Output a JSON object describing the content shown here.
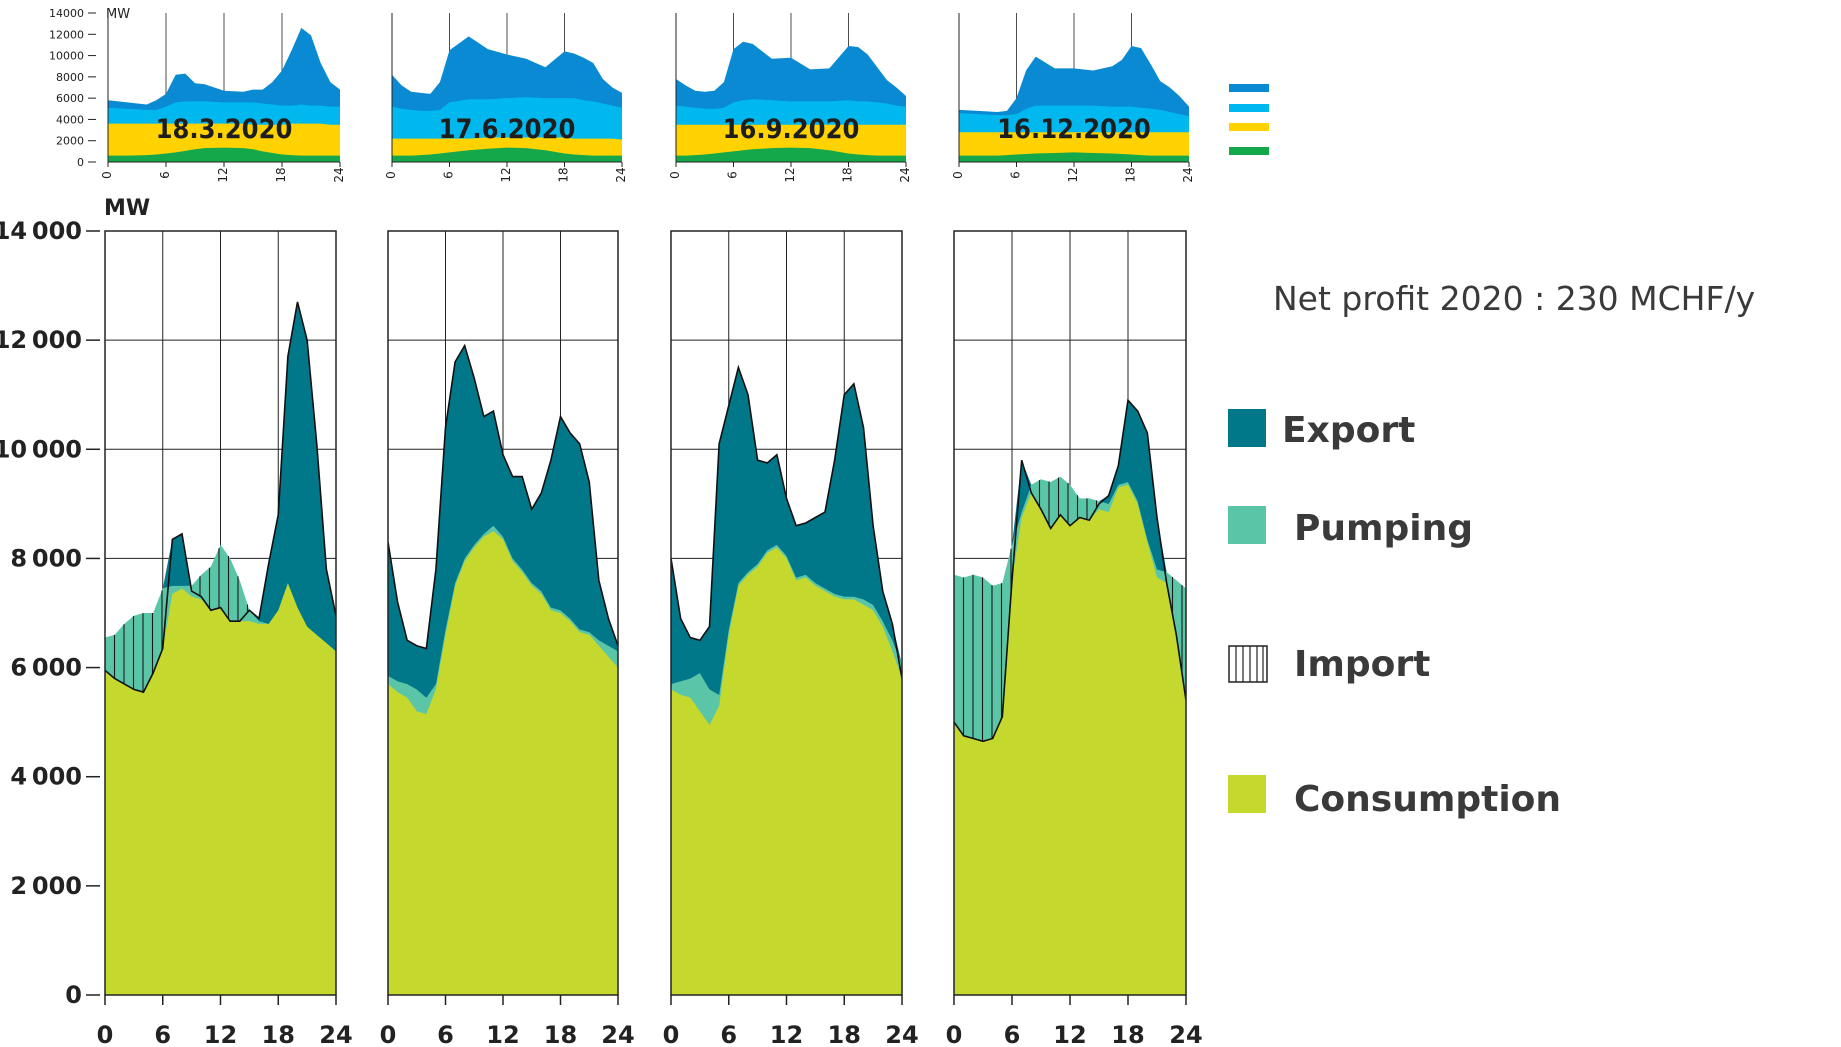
{
  "profit_text": "Net profit 2020 : 230 MCHF/y",
  "legend": {
    "export": "Export",
    "pumping": "Pumping",
    "import": "Import",
    "consumption": "Consumption"
  },
  "colors": {
    "export": "#01778A",
    "pumping": "#5BC5A8",
    "consumption": "#C5D82E",
    "hatch": "#1a1a1a",
    "top_blue_dark": "#0A8AD2",
    "top_blue_light": "#00B8EE",
    "top_yellow": "#FFD200",
    "top_green": "#15A84A"
  },
  "chart_data": [
    {
      "type": "area",
      "title": "",
      "ylabel": "MW",
      "xlabel": "",
      "ylim": [
        0,
        14000
      ],
      "xlim": [
        0,
        24
      ],
      "x_ticks": [
        0,
        6,
        12,
        18,
        24
      ],
      "y_ticks": [
        0,
        2000,
        4000,
        6000,
        8000,
        10000,
        12000,
        14000
      ],
      "grid": true,
      "legend_position": "right",
      "panels": [
        {
          "hours": [
            0,
            1,
            2,
            3,
            4,
            5,
            6,
            7,
            8,
            9,
            10,
            11,
            12,
            13,
            14,
            15,
            16,
            17,
            18,
            19,
            20,
            21,
            22,
            23,
            24
          ],
          "consumption": [
            6500,
            6550,
            6700,
            6850,
            6950,
            6950,
            7200,
            7350,
            7450,
            7300,
            7250,
            7350,
            7450,
            7250,
            7000,
            6850,
            6800,
            6800,
            7050,
            7550,
            7100,
            6750,
            6600,
            6450,
            6300
          ],
          "production": [
            5950,
            5800,
            5700,
            5600,
            5550,
            5900,
            6350,
            8350,
            8450,
            7400,
            7300,
            7050,
            7100,
            6850,
            6850,
            7050,
            6900,
            7900,
            8800,
            11700,
            12700,
            12000,
            10100,
            7800,
            6950
          ],
          "pumping": [
            6550,
            6600,
            6800,
            6950,
            7000,
            7000,
            7450,
            7500,
            7500,
            7500,
            7700,
            7850,
            8250,
            8000,
            7600,
            7050,
            6850,
            6800,
            7050,
            7550,
            7100,
            6750,
            6600,
            6450,
            6300
          ]
        },
        {
          "hours": [
            0,
            1,
            2,
            3,
            4,
            5,
            6,
            7,
            8,
            9,
            10,
            11,
            12,
            13,
            14,
            15,
            16,
            17,
            18,
            19,
            20,
            21,
            22,
            23,
            24
          ],
          "consumption": [
            5700,
            5550,
            5450,
            5200,
            5150,
            5600,
            6600,
            7500,
            7950,
            8200,
            8400,
            8500,
            8350,
            7950,
            7750,
            7500,
            7350,
            7050,
            7000,
            6850,
            6650,
            6600,
            6400,
            6200,
            6000
          ],
          "production": [
            8300,
            7200,
            6500,
            6400,
            6350,
            7800,
            10400,
            11600,
            11900,
            11300,
            10600,
            10700,
            9900,
            9500,
            9500,
            8900,
            9200,
            9800,
            10600,
            10300,
            10100,
            9400,
            7600,
            6900,
            6400
          ],
          "pumping": [
            5850,
            5750,
            5700,
            5600,
            5450,
            5700,
            6700,
            7550,
            8000,
            8250,
            8450,
            8600,
            8400,
            8000,
            7800,
            7550,
            7400,
            7100,
            7050,
            6900,
            6700,
            6650,
            6500,
            6400,
            6300
          ]
        },
        {
          "hours": [
            0,
            1,
            2,
            3,
            4,
            5,
            6,
            7,
            8,
            9,
            10,
            11,
            12,
            13,
            14,
            15,
            16,
            17,
            18,
            19,
            20,
            21,
            22,
            23,
            24
          ],
          "consumption": [
            5600,
            5500,
            5450,
            5200,
            4950,
            5300,
            6600,
            7500,
            7700,
            7850,
            8100,
            8200,
            8000,
            7600,
            7650,
            7500,
            7400,
            7300,
            7250,
            7250,
            7150,
            7050,
            6750,
            6300,
            5800
          ],
          "production": [
            8000,
            6900,
            6550,
            6500,
            6750,
            10100,
            10800,
            11500,
            11000,
            9800,
            9750,
            9900,
            9100,
            8600,
            8650,
            8750,
            8850,
            9800,
            11000,
            11200,
            10400,
            8600,
            7400,
            6800,
            5800
          ],
          "pumping": [
            5700,
            5750,
            5800,
            5900,
            5600,
            5500,
            6700,
            7550,
            7750,
            7900,
            8150,
            8250,
            8050,
            7650,
            7700,
            7550,
            7450,
            7350,
            7300,
            7300,
            7250,
            7150,
            6850,
            6500,
            6050
          ]
        },
        {
          "hours": [
            0,
            1,
            2,
            3,
            4,
            5,
            6,
            7,
            8,
            9,
            10,
            11,
            12,
            13,
            14,
            15,
            16,
            17,
            18,
            19,
            20,
            21,
            22,
            23,
            24
          ],
          "consumption": [
            7200,
            7050,
            7000,
            6900,
            6850,
            7300,
            8100,
            8750,
            9200,
            9250,
            9250,
            9350,
            9200,
            9000,
            8950,
            8900,
            8850,
            9300,
            9350,
            9000,
            8300,
            7650,
            7600,
            7500,
            7350
          ],
          "production": [
            5000,
            4750,
            4700,
            4650,
            4700,
            5100,
            7600,
            9800,
            9200,
            8900,
            8550,
            8800,
            8600,
            8750,
            8700,
            9000,
            9150,
            9700,
            10900,
            10700,
            10300,
            8750,
            7550,
            6600,
            5400
          ],
          "pumping": [
            7700,
            7650,
            7700,
            7650,
            7500,
            7550,
            8250,
            8850,
            9350,
            9450,
            9400,
            9500,
            9350,
            9100,
            9100,
            9050,
            9000,
            9350,
            9400,
            9050,
            8350,
            7800,
            7750,
            7600,
            7450
          ]
        }
      ]
    },
    {
      "type": "area",
      "title": "",
      "ylabel": "MW",
      "ylim": [
        0,
        14000
      ],
      "xlim": [
        0,
        24
      ],
      "x_ticks": [
        0,
        6,
        12,
        18,
        24
      ],
      "y_ticks": [
        0,
        2000,
        4000,
        6000,
        8000,
        10000,
        12000,
        14000
      ],
      "stack_order": [
        "green",
        "yellow",
        "light_blue",
        "dark_blue"
      ],
      "panels": [
        {
          "date": "18.3.2020",
          "hours": [
            0,
            2,
            4,
            5,
            6,
            7,
            8,
            9,
            10,
            12,
            14,
            15,
            16,
            17,
            18,
            19,
            20,
            21,
            22,
            23,
            24
          ],
          "green": [
            600,
            600,
            650,
            700,
            800,
            900,
            1050,
            1200,
            1300,
            1350,
            1300,
            1200,
            1000,
            850,
            700,
            650,
            600,
            600,
            600,
            600,
            600
          ],
          "yellow": [
            3600,
            3600,
            3600,
            3600,
            3600,
            3600,
            3600,
            3600,
            3600,
            3600,
            3600,
            3500,
            3500,
            3500,
            3500,
            3600,
            3600,
            3600,
            3600,
            3500,
            3500
          ],
          "light_blue": [
            5100,
            5000,
            4900,
            4900,
            5200,
            5600,
            5700,
            5700,
            5700,
            5600,
            5600,
            5600,
            5500,
            5400,
            5300,
            5300,
            5400,
            5300,
            5300,
            5200,
            5200
          ],
          "dark_blue": [
            5800,
            5600,
            5400,
            5800,
            6400,
            8200,
            8300,
            7400,
            7300,
            6700,
            6600,
            6800,
            6800,
            7500,
            8600,
            10500,
            12600,
            11900,
            9300,
            7500,
            6800
          ]
        },
        {
          "date": "17.6.2020",
          "hours": [
            0,
            1,
            2,
            3,
            4,
            5,
            6,
            8,
            10,
            12,
            14,
            16,
            18,
            19,
            20,
            21,
            22,
            23,
            24
          ],
          "green": [
            600,
            600,
            600,
            650,
            700,
            800,
            900,
            1100,
            1250,
            1350,
            1300,
            1100,
            800,
            700,
            650,
            600,
            600,
            600,
            600
          ],
          "yellow": [
            2200,
            2200,
            2200,
            2200,
            2200,
            2200,
            2200,
            2200,
            2300,
            2300,
            2300,
            2300,
            2300,
            2200,
            2200,
            2200,
            2200,
            2200,
            2100
          ],
          "light_blue": [
            5200,
            5000,
            4900,
            4800,
            4800,
            4900,
            5600,
            5900,
            5900,
            6000,
            6100,
            6000,
            6000,
            6000,
            5800,
            5700,
            5500,
            5300,
            5100
          ],
          "dark_blue": [
            8200,
            7200,
            6600,
            6500,
            6400,
            7500,
            10500,
            11800,
            10600,
            10100,
            9700,
            8900,
            10400,
            10200,
            9800,
            9300,
            7800,
            7000,
            6500
          ]
        },
        {
          "date": "16.9.2020",
          "hours": [
            0,
            1,
            2,
            3,
            4,
            5,
            6,
            7,
            8,
            10,
            12,
            14,
            16,
            18,
            19,
            20,
            21,
            22,
            23,
            24
          ],
          "green": [
            600,
            600,
            650,
            700,
            800,
            900,
            1000,
            1100,
            1200,
            1300,
            1350,
            1300,
            1100,
            800,
            700,
            650,
            600,
            600,
            600,
            600
          ],
          "yellow": [
            3500,
            3500,
            3500,
            3500,
            3500,
            3500,
            3500,
            3500,
            3500,
            3500,
            3500,
            3500,
            3500,
            3500,
            3500,
            3500,
            3500,
            3500,
            3500,
            3500
          ],
          "light_blue": [
            5300,
            5200,
            5100,
            5000,
            5000,
            5100,
            5600,
            5800,
            5900,
            5800,
            5700,
            5700,
            5700,
            5800,
            5700,
            5700,
            5600,
            5500,
            5300,
            5200
          ],
          "dark_blue": [
            7800,
            7200,
            6700,
            6600,
            6700,
            7500,
            10600,
            11300,
            11100,
            9700,
            9800,
            8700,
            8800,
            10900,
            10800,
            10100,
            8900,
            7700,
            7000,
            6200
          ]
        },
        {
          "date": "16.12.2020",
          "hours": [
            0,
            2,
            4,
            5,
            6,
            7,
            8,
            10,
            12,
            14,
            16,
            17,
            18,
            19,
            20,
            21,
            22,
            23,
            24
          ],
          "green": [
            600,
            600,
            600,
            650,
            700,
            750,
            800,
            850,
            900,
            850,
            800,
            750,
            700,
            650,
            600,
            600,
            600,
            600,
            600
          ],
          "yellow": [
            2800,
            2800,
            2800,
            2800,
            2800,
            2800,
            2800,
            2800,
            2800,
            2800,
            2800,
            2800,
            2800,
            2800,
            2800,
            2800,
            2800,
            2800,
            2800
          ],
          "light_blue": [
            4600,
            4500,
            4400,
            4400,
            4500,
            5000,
            5300,
            5300,
            5300,
            5300,
            5200,
            5200,
            5200,
            5100,
            5000,
            4900,
            4700,
            4500,
            4300
          ],
          "dark_blue": [
            4900,
            4800,
            4700,
            4800,
            6000,
            8600,
            9900,
            8800,
            8800,
            8600,
            9000,
            9600,
            10900,
            10700,
            9200,
            7600,
            7000,
            6200,
            5200
          ]
        }
      ]
    }
  ]
}
